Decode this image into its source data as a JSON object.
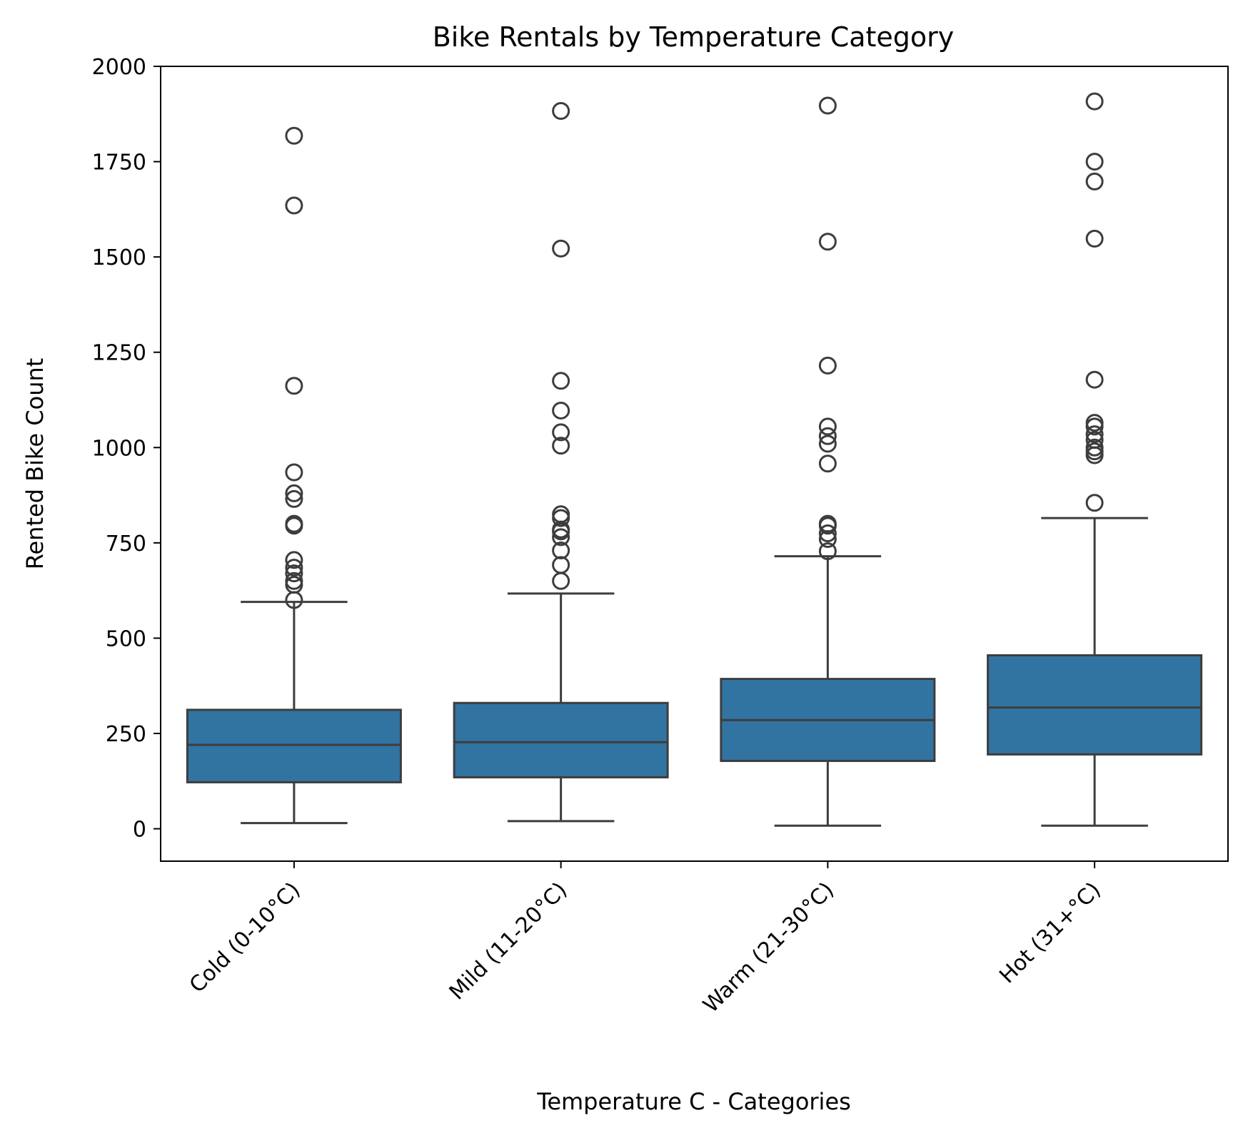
{
  "chart_data": {
    "type": "box",
    "title": "Bike Rentals by Temperature Category",
    "xlabel": "Temperature C - Categories",
    "ylabel": "Rented Bike Count",
    "ylim": [
      -85,
      2000
    ],
    "yticks": [
      0,
      250,
      500,
      750,
      1000,
      1250,
      1500,
      1750,
      2000
    ],
    "grid": false,
    "box_color": "#3274a1",
    "line_color": "#3d3d3d",
    "categories": [
      "Cold (0-10°C)",
      "Mild (11-20°C)",
      "Warm (21-30°C)",
      "Hot (31+°C)"
    ],
    "boxes": [
      {
        "category": "Cold (0-10°C)",
        "whisker_low": 15,
        "q1": 122,
        "median": 220,
        "q3": 312,
        "whisker_high": 595,
        "outliers": [
          600,
          640,
          650,
          670,
          685,
          705,
          795,
          800,
          865,
          880,
          935,
          1162,
          1635,
          1818
        ]
      },
      {
        "category": "Mild (11-20°C)",
        "whisker_low": 20,
        "q1": 135,
        "median": 227,
        "q3": 330,
        "whisker_high": 617,
        "outliers": [
          650,
          692,
          730,
          765,
          780,
          785,
          815,
          825,
          1005,
          1040,
          1097,
          1175,
          1522,
          1883
        ]
      },
      {
        "category": "Warm (21-30°C)",
        "whisker_low": 8,
        "q1": 178,
        "median": 285,
        "q3": 393,
        "whisker_high": 715,
        "outliers": [
          728,
          760,
          775,
          795,
          800,
          958,
          1010,
          1030,
          1055,
          1215,
          1540,
          1897
        ]
      },
      {
        "category": "Hot (31+°C)",
        "whisker_low": 8,
        "q1": 195,
        "median": 318,
        "q3": 455,
        "whisker_high": 815,
        "outliers": [
          855,
          980,
          990,
          1000,
          1020,
          1035,
          1055,
          1065,
          1178,
          1548,
          1698,
          1750,
          1908
        ]
      }
    ]
  }
}
